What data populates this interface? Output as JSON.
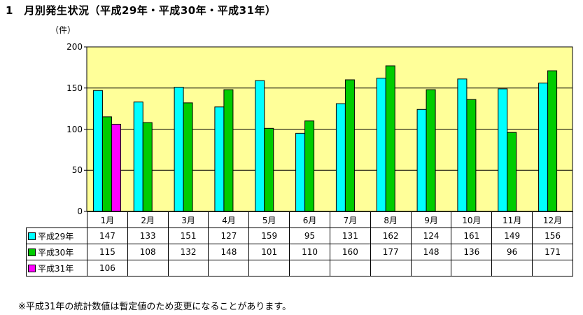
{
  "page": {
    "title": "1　月別発生状況（平成29年・平成30年・平成31年）",
    "unit": "（件）",
    "note": "※平成31年の統計数値は暫定値のため変更になることがあります。"
  },
  "colors": {
    "plot_bg": "#ffff99",
    "gridline": "#000000"
  },
  "chart_data": {
    "type": "bar",
    "title": "",
    "xlabel": "",
    "ylabel": "（件）",
    "ylim": [
      0,
      200
    ],
    "yticks": [
      "0",
      "50",
      "100",
      "150",
      "200"
    ],
    "grid": true,
    "legend": "table-left",
    "categories": [
      "1月",
      "2月",
      "3月",
      "4月",
      "5月",
      "6月",
      "7月",
      "8月",
      "9月",
      "10月",
      "11月",
      "12月"
    ],
    "series": [
      {
        "name": "平成29年",
        "color": "#00ffff",
        "values": [
          "147",
          "133",
          "151",
          "127",
          "159",
          "95",
          "131",
          "162",
          "124",
          "161",
          "149",
          "156"
        ]
      },
      {
        "name": "平成30年",
        "color": "#00cc00",
        "values": [
          "115",
          "108",
          "132",
          "148",
          "101",
          "110",
          "160",
          "177",
          "148",
          "136",
          "96",
          "171"
        ]
      },
      {
        "name": "平成31年",
        "color": "#ff00ff",
        "values": [
          "106",
          "",
          "",
          "",
          "",
          "",
          "",
          "",
          "",
          "",
          "",
          ""
        ]
      }
    ]
  }
}
